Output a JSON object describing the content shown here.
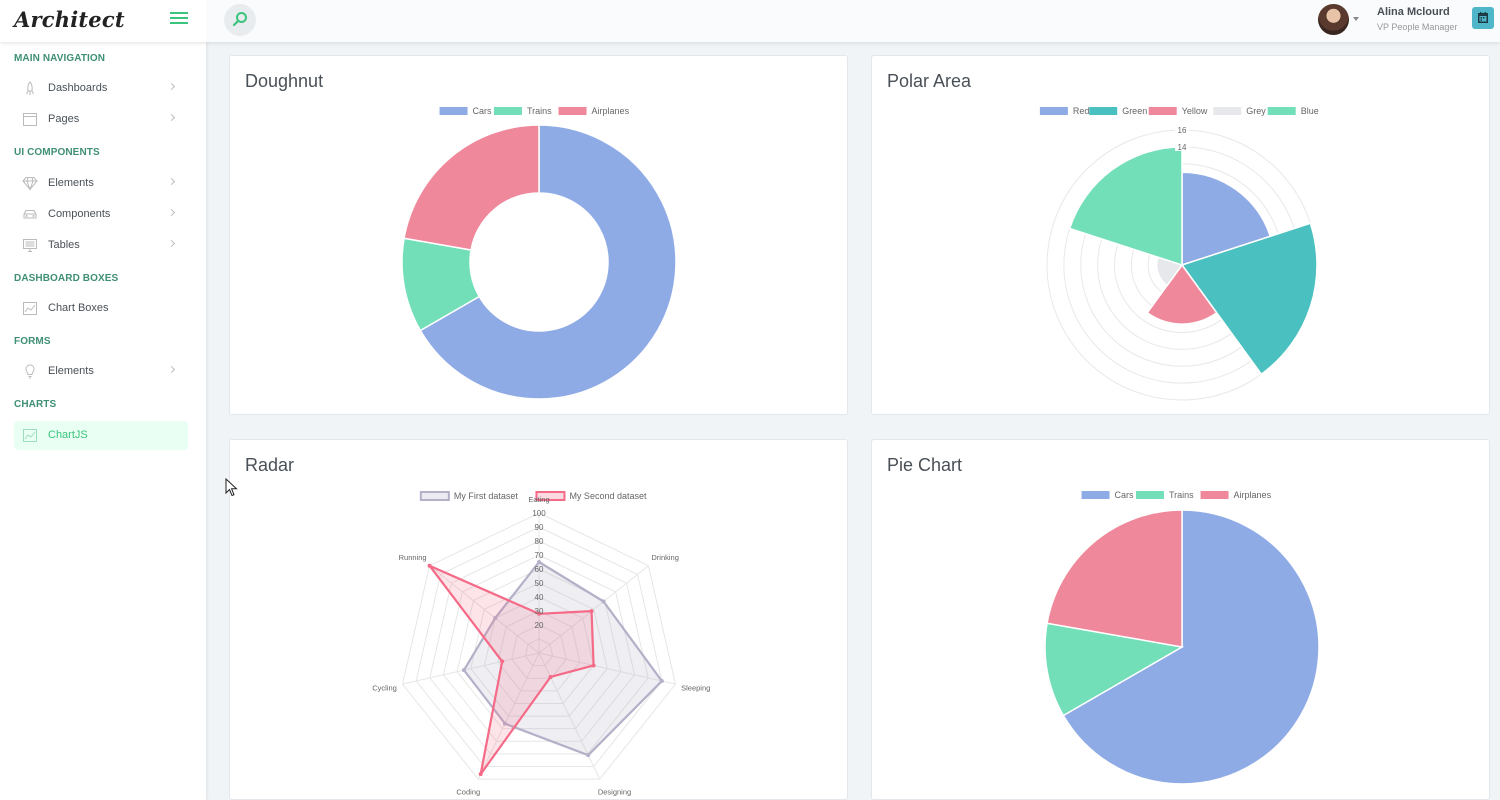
{
  "app": {
    "name": "Architect"
  },
  "user": {
    "name": "Alina Mclourd",
    "role": "VP People Manager"
  },
  "sidebar": {
    "sections": [
      {
        "heading": "MAIN NAVIGATION",
        "items": [
          {
            "label": "Dashboards",
            "icon": "rocket-icon",
            "has_children": true
          },
          {
            "label": "Pages",
            "icon": "browser-icon",
            "has_children": true
          }
        ]
      },
      {
        "heading": "UI COMPONENTS",
        "items": [
          {
            "label": "Elements",
            "icon": "diamond-icon",
            "has_children": true
          },
          {
            "label": "Components",
            "icon": "car-icon",
            "has_children": true
          },
          {
            "label": "Tables",
            "icon": "display-icon",
            "has_children": true
          }
        ]
      },
      {
        "heading": "DASHBOARD BOXES",
        "items": [
          {
            "label": "Chart Boxes",
            "icon": "graph-icon",
            "has_children": false
          }
        ]
      },
      {
        "heading": "FORMS",
        "items": [
          {
            "label": "Elements",
            "icon": "light-bulb-icon",
            "has_children": true
          }
        ]
      },
      {
        "heading": "CHARTS",
        "items": [
          {
            "label": "ChartJS",
            "icon": "graph-icon",
            "has_children": false,
            "active": true
          }
        ]
      }
    ]
  },
  "colors": {
    "accent": "#3ac47d",
    "blue": "#8fabe6",
    "green": "#72dfb9",
    "red": "#f0889c",
    "teal": "#4bc0c0",
    "grey": "#e6e8eb",
    "radar_grey": "#b3b0c8",
    "radar_red": "#f46a87"
  },
  "chart_data": [
    {
      "type": "doughnut",
      "title": "Doughnut",
      "categories": [
        "Cars",
        "Trains",
        "Airplanes"
      ],
      "values": [
        300,
        50,
        100
      ],
      "legend": "top"
    },
    {
      "type": "polarArea",
      "title": "Polar Area",
      "categories": [
        "Red",
        "Green",
        "Yellow",
        "Grey",
        "Blue"
      ],
      "values": [
        11,
        16,
        7,
        3,
        14
      ],
      "scale": {
        "min": 0,
        "max": 16,
        "visible_ticks": [
          "16",
          "14"
        ]
      },
      "legend": "top"
    },
    {
      "type": "radar",
      "title": "Radar",
      "categories": [
        "Eating",
        "Drinking",
        "Sleeping",
        "Designing",
        "Coding",
        "Cycling",
        "Running"
      ],
      "series": [
        {
          "name": "My First dataset",
          "values": [
            65,
            59,
            90,
            81,
            56,
            55,
            40
          ]
        },
        {
          "name": "My Second dataset",
          "values": [
            28,
            48,
            40,
            19,
            96,
            27,
            100
          ]
        }
      ],
      "scale": {
        "min": 0,
        "max": 100,
        "ticks": [
          "20",
          "30",
          "40",
          "50",
          "60",
          "70",
          "80",
          "90",
          "100"
        ]
      },
      "legend": "top"
    },
    {
      "type": "pie",
      "title": "Pie Chart",
      "categories": [
        "Cars",
        "Trains",
        "Airplanes"
      ],
      "values": [
        300,
        50,
        100
      ],
      "legend": "top"
    }
  ]
}
